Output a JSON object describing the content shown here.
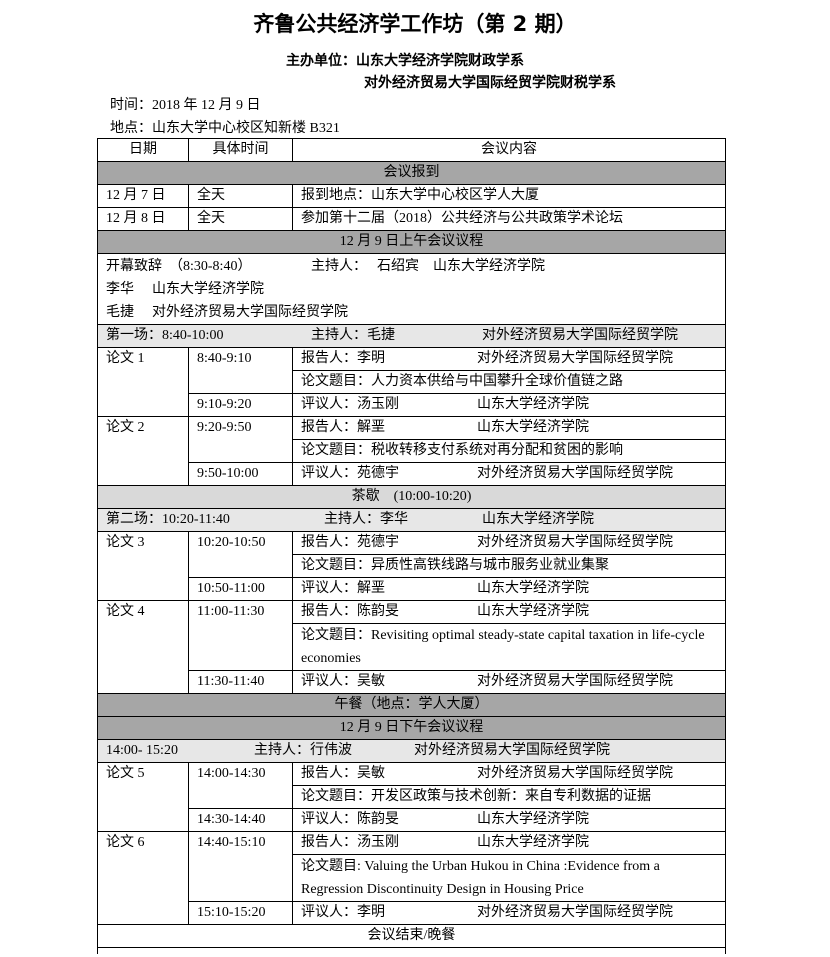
{
  "title": "齐鲁公共经济学工作坊（第 2 期）",
  "organizer": {
    "label": "主办单位：",
    "lines": [
      "山东大学经济学院财政学系",
      "对外经济贸易大学国际经贸学院财税学系"
    ]
  },
  "time": "时间：2018 年 12 月 9 日",
  "location": "地点：山东大学中心校区知新楼 B321",
  "table": {
    "headers": [
      "日期",
      "具体时间",
      "会议内容"
    ],
    "registration": {
      "heading": "会议报到",
      "rows": [
        {
          "date": "12 月 7 日",
          "time": "全天",
          "content": "报到地点：山东大学中心校区学人大厦"
        },
        {
          "date": "12 月 8 日",
          "time": "全天",
          "content": "参加第十二届（2018）公共经济与公共政策学术论坛"
        }
      ]
    },
    "morning": {
      "heading": "12 月 9 日上午会议议程",
      "opening": {
        "title": "开幕致辞　（8:30-8:40）",
        "host_label": "主持人：",
        "host": "石绍宾",
        "host_affil": "山东大学经济学院",
        "guests": [
          {
            "name": "李华",
            "affil": "山东大学经济学院"
          },
          {
            "name": "毛捷",
            "affil": "对外经济贸易大学国际经贸学院"
          }
        ]
      }
    },
    "sessions": [
      {
        "label": "第一场：8:40-10:00",
        "host": "主持人：毛捷",
        "affil": "对外经济贸易大学国际经贸学院",
        "papers": [
          {
            "label": "论文 1",
            "presenter_time": "8:40-9:10",
            "presenter": "报告人：李明",
            "presenter_affil": "对外经济贸易大学国际经贸学院",
            "paper_title": "论文题目：人力资本供给与中国攀升全球价值链之路",
            "discussant_time": "9:10-9:20",
            "discussant": "评议人：汤玉刚",
            "discussant_affil": "山东大学经济学院"
          },
          {
            "label": "论文 2",
            "presenter_time": "9:20-9:50",
            "presenter": "报告人：解垩",
            "presenter_affil": "山东大学经济学院",
            "paper_title": "论文题目：税收转移支付系统对再分配和贫困的影响",
            "discussant_time": "9:50-10:00",
            "discussant": "评议人：苑德宇",
            "discussant_affil": "对外经济贸易大学国际经贸学院"
          }
        ]
      },
      {
        "label": "第二场：10:20-11:40",
        "host": "主持人：李华",
        "affil": "山东大学经济学院",
        "papers": [
          {
            "label": "论文 3",
            "presenter_time": "10:20-10:50",
            "presenter": "报告人：苑德宇",
            "presenter_affil": "对外经济贸易大学国际经贸学院",
            "paper_title": "论文题目：异质性高铁线路与城市服务业就业集聚",
            "discussant_time": "10:50-11:00",
            "discussant": "评议人：解垩",
            "discussant_affil": "山东大学经济学院"
          },
          {
            "label": "论文 4",
            "presenter_time": "11:00-11:30",
            "presenter": "报告人：陈韵旻",
            "presenter_affil": "山东大学经济学院",
            "paper_title": "论文题目：Revisiting optimal steady-state capital taxation in life-cycle economies",
            "discussant_time": "11:30-11:40",
            "discussant": "评议人：吴敏",
            "discussant_affil": "对外经济贸易大学国际经贸学院"
          }
        ]
      },
      {
        "label": "14:00- 15:20",
        "host": "主持人：行伟波",
        "affil": "对外经济贸易大学国际经贸学院",
        "papers": [
          {
            "label": "论文 5",
            "presenter_time": "14:00-14:30",
            "presenter": "报告人：吴敏",
            "presenter_affil": "对外经济贸易大学国际经贸学院",
            "paper_title": "论文题目：开发区政策与技术创新：来自专利数据的证据",
            "discussant_time": "14:30-14:40",
            "discussant": "评议人：陈韵旻",
            "discussant_affil": "山东大学经济学院"
          },
          {
            "label": "论文 6",
            "presenter_time": "14:40-15:10",
            "presenter": "报告人：汤玉刚",
            "presenter_affil": "山东大学经济学院",
            "paper_title": "论文题目: Valuing the Urban Hukou in China :Evidence from a Regression Discontinuity Design in Housing Price",
            "discussant_time": "15:10-15:20",
            "discussant": "评议人：李明",
            "discussant_affil": "对外经济贸易大学国际经贸学院"
          }
        ]
      }
    ],
    "tea_break": "茶歇　(10:00-10:20)",
    "lunch": "午餐（地点：学人大厦）",
    "afternoon_heading": "12 月 9 日下午会议议程",
    "closing": "会议结束/晚餐"
  },
  "colors": {
    "section_dark": "#a6a6a6",
    "section_mid": "#d9d9d9",
    "section_light": "#e7e7e7"
  }
}
